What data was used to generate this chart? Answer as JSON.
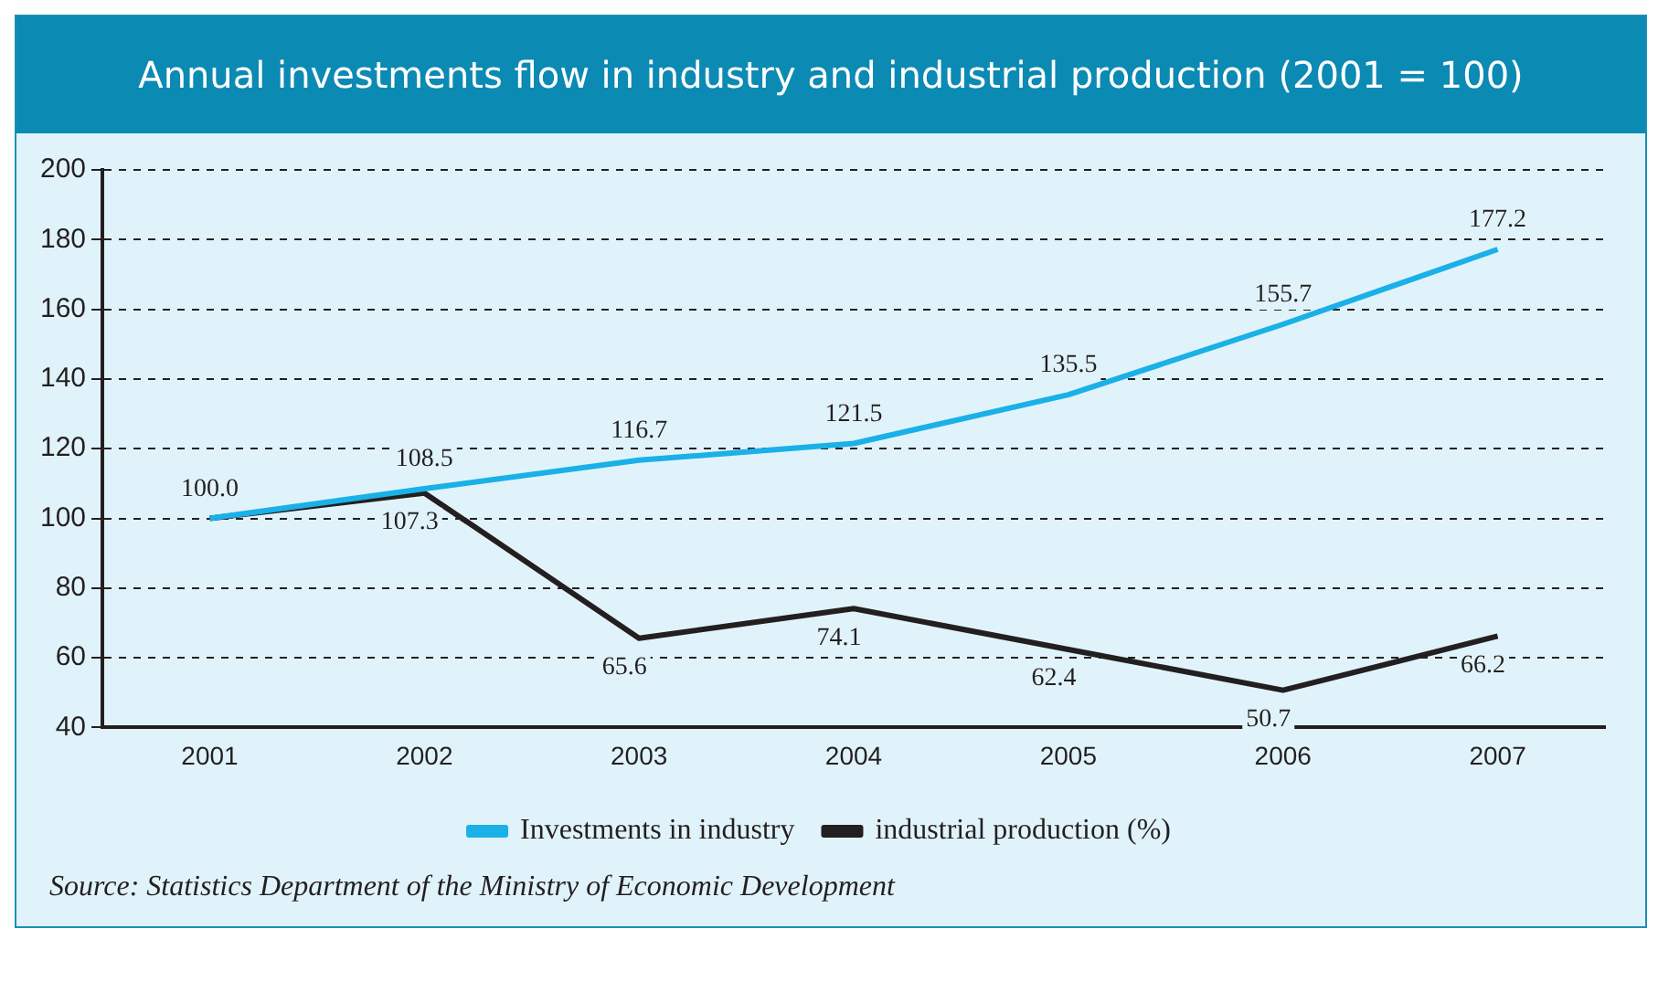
{
  "chart_data": {
    "type": "line",
    "title": "Annual investments flow in industry and industrial production (2001 = 100)",
    "categories": [
      "2001",
      "2002",
      "2003",
      "2004",
      "2005",
      "2006",
      "2007"
    ],
    "series": [
      {
        "name": "Investments in industry",
        "color": "#1ab0e8",
        "values": [
          100.0,
          108.5,
          116.7,
          121.5,
          135.5,
          155.7,
          177.2
        ],
        "value_labels": [
          "100.0",
          "108.5",
          "116.7",
          "121.5",
          "135.5",
          "155.7",
          "177.2"
        ]
      },
      {
        "name": "industrial production (%)",
        "color": "#231f20",
        "values": [
          100.0,
          107.3,
          65.6,
          74.1,
          62.4,
          50.7,
          66.2
        ],
        "value_labels": [
          null,
          "107.3",
          "65.6",
          "74.1",
          "62.4",
          "50.7",
          "66.2"
        ]
      }
    ],
    "ylim": [
      40,
      200
    ],
    "yticks": [
      40,
      60,
      80,
      100,
      120,
      140,
      160,
      180,
      200
    ],
    "grid": "y",
    "legend": "bottom",
    "marker": "none",
    "line_style": "solid",
    "annotations": [
      "Source: Statistics Department of the Ministry of Economic Development"
    ]
  }
}
